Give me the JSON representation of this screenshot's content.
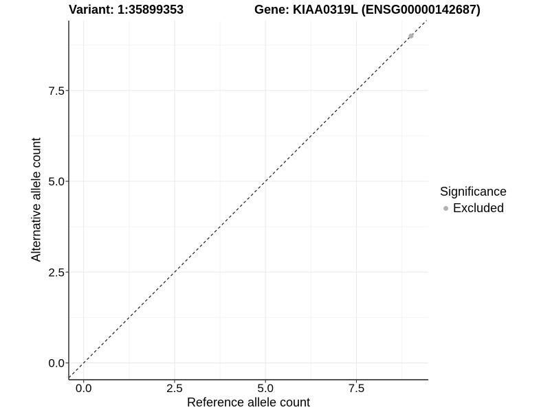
{
  "chart_data": {
    "type": "scatter",
    "title_left": "Variant: 1:35899353",
    "title_right": "Gene: KIAA0319L (ENSG00000142687)",
    "xlabel": "Reference allele count",
    "ylabel": "Alternative allele count",
    "x_tick_values": [
      0,
      2.5,
      5,
      7.5
    ],
    "x_tick_labels": [
      "0.0",
      "2.5",
      "5.0",
      "7.5"
    ],
    "y_tick_values": [
      0,
      2.5,
      5,
      7.5
    ],
    "y_tick_labels": [
      "0.0",
      "2.5",
      "5.0",
      "7.5"
    ],
    "minor_tick_values": [
      1.25,
      3.75,
      6.25,
      8.75
    ],
    "xlim": [
      -0.41,
      9.48
    ],
    "ylim": [
      -0.46,
      9.43
    ],
    "grid": "major+minor",
    "reference_line": {
      "type": "identity",
      "slope": 1,
      "intercept": 0,
      "style": "dashed",
      "color": "#1a1a1a"
    },
    "series": [
      {
        "name": "Excluded",
        "color": "#b3b3b3",
        "points": [
          {
            "x": 9,
            "y": 9
          }
        ]
      }
    ],
    "legend": {
      "title": "Significance",
      "position": "right",
      "entries": [
        {
          "label": "Excluded",
          "color": "#b3b3b3",
          "marker": "circle"
        }
      ]
    },
    "colors": {
      "grid_major": "#e8e8e8",
      "grid_minor": "#f3f3f3",
      "axis_line": "#3c3c3c",
      "tick_mark": "#3c3c3c",
      "text": "#000000"
    }
  }
}
